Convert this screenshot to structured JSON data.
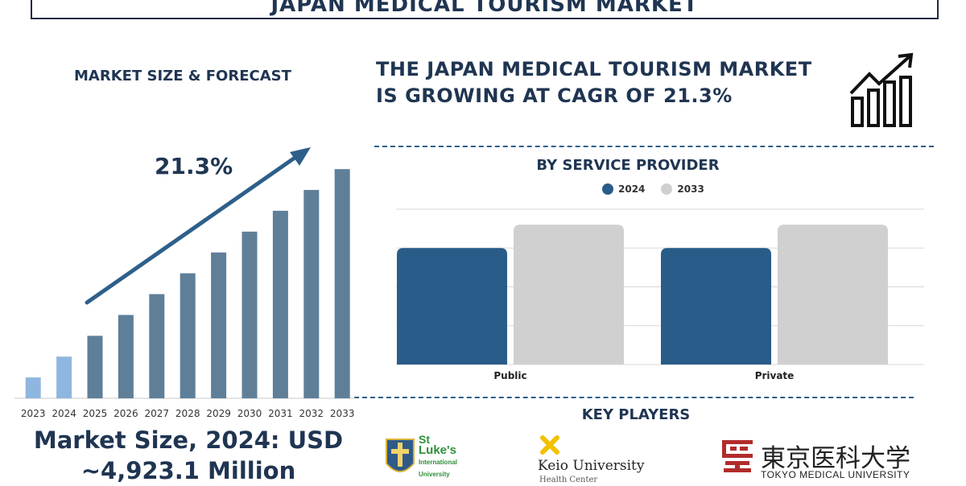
{
  "header": {
    "title": "JAPAN MEDICAL TOURISM MARKET"
  },
  "left_panel": {
    "subtitle": "MARKET SIZE & FORECAST",
    "cagr_label": "21.3%",
    "market_size_line1": "Market Size, 2024: USD",
    "market_size_line2": "~4,923.1 Million"
  },
  "right_panel": {
    "headline_line1": "THE JAPAN MEDICAL TOURISM MARKET",
    "headline_line2": "IS GROWING AT CAGR OF 21.3%",
    "segment_title": "BY SERVICE PROVIDER",
    "key_players_title": "KEY PLAYERS"
  },
  "key_players": [
    {
      "name": "St Luke's International University",
      "line1": "St",
      "line2": "Luke's",
      "line3": "International",
      "line4": "University"
    },
    {
      "name": "Keio University",
      "line1": "Keio University",
      "line2": "Health Center"
    },
    {
      "name": "Tokyo Medical University",
      "line1": "東京医科大学",
      "line2": "TOKYO MEDICAL UNIVERSITY"
    }
  ],
  "colors": {
    "navy": "#1f3552",
    "bar_early": "#8fb6df",
    "bar_main": "#5f7f99",
    "series_2024": "#295c89",
    "series_2033": "#d0d0d0",
    "divider": "#2e5f8a"
  },
  "chart_data": [
    {
      "type": "bar",
      "title": "MARKET SIZE & FORECAST",
      "categories": [
        "2023",
        "2024",
        "2025",
        "2026",
        "2027",
        "2028",
        "2029",
        "2030",
        "2031",
        "2032",
        "2033"
      ],
      "values": [
        1.0,
        2.0,
        3.0,
        4.0,
        5.0,
        6.0,
        7.0,
        8.0,
        9.0,
        10.0,
        11.0
      ],
      "annotations": [
        "21.3%"
      ],
      "ylim": [
        0,
        11.2
      ],
      "grid": false,
      "legend": "none"
    },
    {
      "type": "bar",
      "title": "BY SERVICE PROVIDER",
      "categories": [
        "Public",
        "Private"
      ],
      "series": [
        {
          "name": "2024",
          "values": [
            3.0,
            3.0
          ]
        },
        {
          "name": "2033",
          "values": [
            3.6,
            3.6
          ]
        }
      ],
      "ylim": [
        0,
        4
      ],
      "grid": true,
      "legend": "top"
    }
  ]
}
